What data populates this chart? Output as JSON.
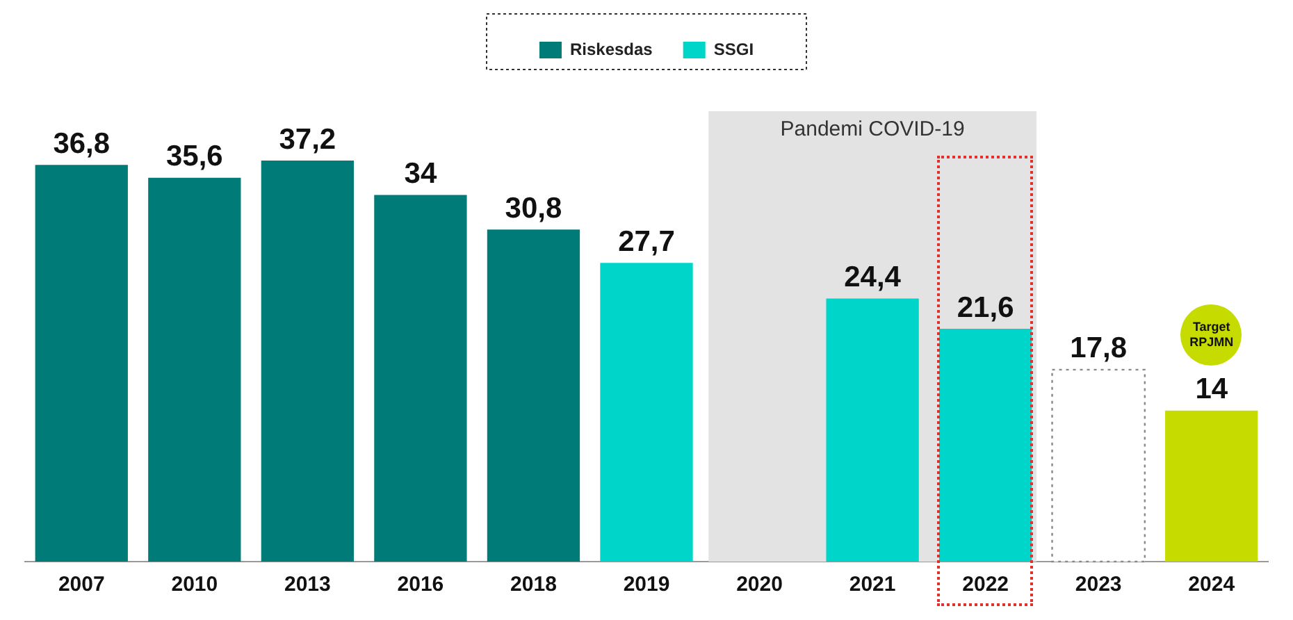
{
  "chart_data": {
    "type": "bar",
    "categories": [
      "2007",
      "2010",
      "2013",
      "2016",
      "2018",
      "2019",
      "2020",
      "2021",
      "2022",
      "2023",
      "2024"
    ],
    "series": [
      {
        "name": "Riskesdas",
        "color": "#007b78",
        "values": [
          36.8,
          35.6,
          37.2,
          34,
          30.8,
          null,
          null,
          null,
          null,
          null,
          null
        ],
        "value_labels": [
          "36,8",
          "35,6",
          "37,2",
          "34",
          "30,8",
          null,
          null,
          null,
          null,
          null,
          null
        ]
      },
      {
        "name": "SSGI",
        "color": "#00d5c9",
        "values": [
          null,
          null,
          null,
          null,
          null,
          27.7,
          null,
          24.4,
          21.6,
          null,
          null
        ],
        "value_labels": [
          null,
          null,
          null,
          null,
          null,
          "27,7",
          null,
          "24,4",
          "21,6",
          null,
          null
        ]
      },
      {
        "color": "#ffffff",
        "line_style": "dotted",
        "values": [
          null,
          null,
          null,
          null,
          null,
          null,
          null,
          null,
          null,
          17.8,
          null
        ],
        "value_labels": [
          null,
          null,
          null,
          null,
          null,
          null,
          null,
          null,
          null,
          "17,8",
          null
        ]
      },
      {
        "color": "#c6db00",
        "values": [
          null,
          null,
          null,
          null,
          null,
          null,
          null,
          null,
          null,
          null,
          14
        ],
        "value_labels": [
          null,
          null,
          null,
          null,
          null,
          null,
          null,
          null,
          null,
          null,
          "14"
        ]
      }
    ],
    "bands": [
      {
        "axis": "x",
        "from": "2020",
        "to": "2022",
        "label": "Pandemi COVID-19",
        "color": "#e3e3e3"
      }
    ],
    "annotations": [
      "Target RPJMN"
    ],
    "legend": "top",
    "tick_labels": "x",
    "grid": false
  }
}
